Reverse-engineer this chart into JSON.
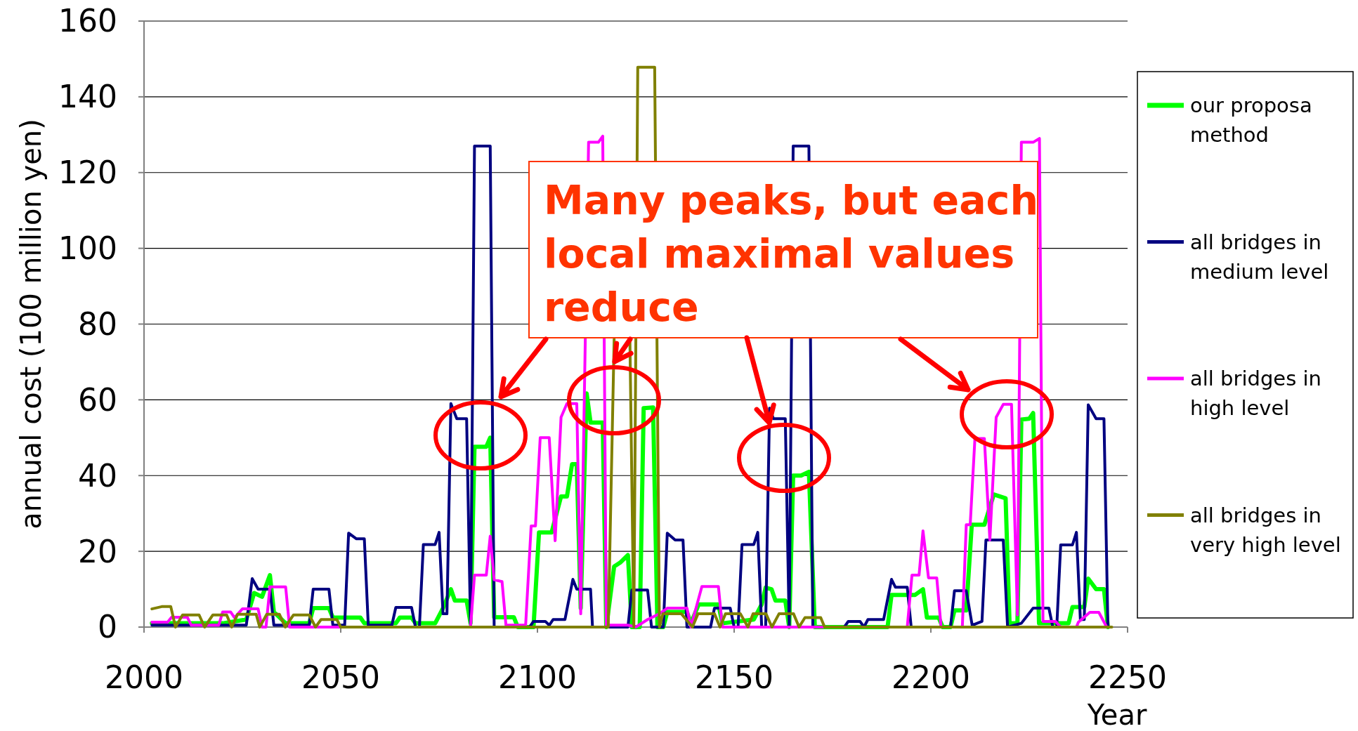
{
  "chart_data": {
    "type": "line",
    "ylabel": "annual cost (100 million yen)",
    "xlabel": "Year",
    "xlim": [
      2000,
      2250
    ],
    "xticks": [
      2000,
      2050,
      2100,
      2150,
      2200,
      2250
    ],
    "ylim": [
      0,
      160
    ],
    "yticks": [
      0,
      20,
      40,
      60,
      80,
      100,
      120,
      140,
      160
    ],
    "grid": "y",
    "legend": "right",
    "marker": "none",
    "line_style": "solid",
    "annotations": [
      "Many peaks, but each local maximal values reduce"
    ],
    "series": [
      {
        "name": "our proposa method",
        "color": "#00ff00",
        "x": [
          2002,
          2020,
          2026,
          2028,
          2030,
          2032,
          2033,
          2036,
          2042,
          2043,
          2047,
          2048,
          2055,
          2056,
          2064,
          2065,
          2068,
          2069,
          2074,
          2076,
          2078,
          2079,
          2082,
          2083,
          2084,
          2087,
          2088,
          2089,
          2094,
          2095,
          2099,
          2100.4,
          2103.6,
          2106,
          2107.5,
          2108.8,
          2110,
          2111,
          2112.5,
          2113.5,
          2116.6,
          2117.5,
          2119.5,
          2121,
          2123,
          2124,
          2126,
          2127,
          2129.4,
          2130.5,
          2132,
          2133,
          2138,
          2139,
          2141,
          2146,
          2147,
          2155,
          2157,
          2158,
          2159.5,
          2160.5,
          2163,
          2164,
          2165,
          2167,
          2169,
          2170.5,
          2189,
          2190,
          2196,
          2198,
          2199,
          2202,
          2203,
          2205,
          2206,
          2209,
          2210.4,
          2213.6,
          2216,
          2219,
          2220,
          2222,
          2223,
          2225,
          2226,
          2227.5,
          2235,
          2236,
          2239,
          2240,
          2242,
          2244,
          2245
        ],
        "values": [
          1,
          1,
          2,
          9,
          8,
          13.7,
          4,
          1,
          1,
          5,
          5,
          2.5,
          2.5,
          1,
          1,
          2.5,
          2.5,
          1,
          1,
          5,
          10,
          7,
          7,
          1,
          47.6,
          47.6,
          50,
          2.6,
          2.6,
          0,
          0,
          25,
          25,
          34.5,
          34.5,
          43,
          43,
          5,
          61.7,
          54,
          54,
          0,
          16,
          17,
          19,
          0,
          0,
          57.8,
          58,
          0,
          0,
          4,
          4,
          1,
          6,
          6,
          1,
          2,
          6,
          10.4,
          10,
          7,
          7,
          0,
          40,
          40,
          41,
          0,
          0,
          8.5,
          8.5,
          10,
          2.5,
          2.5,
          0,
          0,
          4.4,
          4.4,
          27,
          27,
          35,
          34,
          1,
          1,
          54.8,
          55,
          56.5,
          1,
          1,
          5.3,
          5.3,
          12.8,
          10,
          10,
          0
        ]
      },
      {
        "name": "all bridges in medium level",
        "color": "#000080",
        "x": [
          2002,
          2026,
          2027.5,
          2029,
          2032,
          2033,
          2042,
          2043,
          2047,
          2048,
          2051,
          2052,
          2054,
          2056,
          2057,
          2063,
          2064,
          2068,
          2069,
          2070,
          2071,
          2074,
          2075,
          2076,
          2077,
          2078,
          2079.5,
          2082,
          2083,
          2084,
          2088,
          2089,
          2098,
          2099,
          2102,
          2103,
          2104,
          2107,
          2109,
          2110,
          2113.5,
          2114,
          2123,
          2124,
          2128,
          2129,
          2132,
          2133,
          2135,
          2137,
          2138,
          2144,
          2145,
          2149,
          2150,
          2151,
          2152,
          2155,
          2156,
          2157,
          2158,
          2159,
          2160,
          2163,
          2164,
          2165,
          2169,
          2170,
          2178,
          2179,
          2182,
          2183,
          2184,
          2188,
          2190,
          2191,
          2194,
          2195,
          2205,
          2206,
          2209,
          2210.5,
          2213,
          2214,
          2218.4,
          2219.5,
          2223,
          2226,
          2230,
          2231,
          2232,
          2233,
          2236,
          2237,
          2238,
          2239,
          2240,
          2242,
          2244,
          2245
        ],
        "values": [
          0.5,
          0.5,
          12.8,
          10,
          10,
          0.5,
          0.5,
          10,
          10,
          0.5,
          0.5,
          24.8,
          23.3,
          23.3,
          0.5,
          0.5,
          5.2,
          5.2,
          0,
          0,
          21.8,
          21.8,
          25,
          3.5,
          3.5,
          59,
          55,
          55,
          0,
          127,
          127,
          0,
          0,
          1.5,
          1.5,
          0.5,
          2,
          2,
          12.6,
          10,
          10,
          0,
          0,
          9.8,
          9.8,
          0,
          0,
          24.8,
          23,
          23,
          0,
          0,
          5,
          5,
          0,
          0,
          21.8,
          21.8,
          25,
          0,
          0,
          57.8,
          55,
          55,
          0,
          127,
          127,
          0,
          0,
          1.5,
          1.5,
          0,
          2,
          2,
          12.6,
          10.5,
          10.5,
          0,
          0,
          9.6,
          9.6,
          0.5,
          1.5,
          23,
          23,
          0,
          1,
          5,
          5,
          0,
          0,
          21.7,
          21.7,
          25,
          2,
          2,
          58.7,
          55,
          55,
          0
        ]
      },
      {
        "name": "all bridges in high level",
        "color": "#ff00ff",
        "x": [
          2002,
          2006,
          2007,
          2011,
          2012,
          2019,
          2020,
          2022,
          2023,
          2025,
          2029,
          2030,
          2031,
          2032,
          2036,
          2037,
          2083,
          2084,
          2087,
          2088,
          2089,
          2091,
          2092,
          2097,
          2098.4,
          2099.5,
          2100.7,
          2103,
          2104.5,
          2106,
          2107.5,
          2110,
          2111,
          2113,
          2115.5,
          2116.6,
          2117.5,
          2123,
          2125,
          2128,
          2131,
          2133,
          2138,
          2139,
          2141.8,
          2146,
          2147,
          2194,
          2195.2,
          2197,
          2198,
          2199.4,
          2201.5,
          2202.6,
          2208,
          2209,
          2210,
          2211.2,
          2213.6,
          2215,
          2216.6,
          2218.4,
          2220.5,
          2222,
          2223,
          2226,
          2227.6,
          2228.5,
          2231.7,
          2233,
          2237,
          2237.5,
          2240.4,
          2242.7,
          2244.7
        ],
        "values": [
          1.3,
          1.3,
          2.6,
          2.6,
          0.5,
          0.5,
          4,
          4,
          2.5,
          4.8,
          4.8,
          0,
          0,
          10.6,
          10.6,
          0,
          0,
          13.7,
          13.7,
          24,
          12.5,
          12,
          0.5,
          0.5,
          26.7,
          26.7,
          50,
          50,
          22.8,
          55.4,
          59,
          59,
          3.5,
          128,
          128,
          129.6,
          0.5,
          0.5,
          0,
          2,
          3.5,
          5,
          5,
          0,
          10.7,
          10.7,
          0,
          0,
          13.7,
          13.7,
          25.4,
          13,
          13,
          0,
          0,
          27,
          27,
          49.8,
          49.8,
          23,
          55.4,
          58.8,
          58.8,
          3.2,
          128,
          128,
          129,
          1.5,
          1.5,
          0,
          0,
          1.3,
          3.9,
          3.9,
          0
        ]
      },
      {
        "name": "all bridges in very high level",
        "color": "#808000",
        "x": [
          2002,
          2004.5,
          2006.8,
          2008,
          2009.8,
          2014,
          2015.4,
          2017.5,
          2021,
          2022.3,
          2023.8,
          2028.5,
          2029.4,
          2031.2,
          2034.4,
          2035.9,
          2038,
          2042,
          2043.6,
          2045,
          2049,
          2050,
          2118,
          2119.5,
          2121,
          2123.5,
          2124.5,
          2125.5,
          2129.8,
          2131,
          2131.9,
          2136.6,
          2139.4,
          2140.8,
          2145,
          2146.4,
          2147.8,
          2151.6,
          2153.5,
          2154.8,
          2158.1,
          2159.6,
          2161.4,
          2165.1,
          2166.5,
          2168,
          2172,
          2173,
          2246
        ],
        "values": [
          4.8,
          5.4,
          5.4,
          0,
          3.2,
          3.2,
          0,
          3.2,
          3.2,
          0,
          3.4,
          3.4,
          0,
          3.4,
          3.4,
          0,
          3.2,
          3.2,
          0,
          2,
          2,
          0,
          0,
          76,
          null,
          76,
          0,
          147.8,
          147.8,
          0,
          3.5,
          3.5,
          0,
          3.5,
          3.5,
          0,
          3.5,
          3.5,
          0,
          3.5,
          3.5,
          0,
          3.5,
          3.5,
          0,
          2.5,
          2.5,
          0,
          0
        ]
      }
    ]
  }
}
